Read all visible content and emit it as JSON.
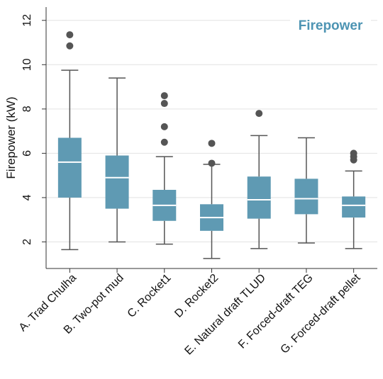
{
  "chart_data": {
    "type": "box",
    "title": "Firepower",
    "ylabel": "Firepower (kW)",
    "xlabel": "",
    "ylim": [
      0.8,
      12.6
    ],
    "yticks": [
      2,
      4,
      6,
      8,
      10,
      12
    ],
    "grid": true,
    "colors": {
      "box": "#5f9ab3",
      "median": "#ffffff",
      "whisker": "#555555",
      "outlier": "#555555",
      "title": "#4d94b3",
      "grid": "#e2e2e2"
    },
    "categories": [
      "A. Trad Chulha",
      "B. Two-pot mud",
      "C. Rocket1",
      "D. Rocket2",
      "E. Natural draft TLUD",
      "F. Forced-draft TEG",
      "G. Forced-draft pellet"
    ],
    "boxes": [
      {
        "category": "A. Trad Chulha",
        "min": 1.65,
        "q1": 4.0,
        "median": 5.6,
        "q3": 6.7,
        "max": 9.75,
        "outliers": [
          10.85,
          11.35
        ]
      },
      {
        "category": "B. Two-pot mud",
        "min": 2.0,
        "q1": 3.5,
        "median": 4.9,
        "q3": 5.9,
        "max": 9.4,
        "outliers": []
      },
      {
        "category": "C. Rocket1",
        "min": 1.9,
        "q1": 2.95,
        "median": 3.65,
        "q3": 4.35,
        "max": 5.85,
        "outliers": [
          6.5,
          7.2,
          8.25,
          8.6
        ]
      },
      {
        "category": "D. Rocket2",
        "min": 1.25,
        "q1": 2.5,
        "median": 3.1,
        "q3": 3.7,
        "max": 5.5,
        "outliers": [
          5.55,
          6.45
        ]
      },
      {
        "category": "E. Natural draft TLUD",
        "min": 1.7,
        "q1": 3.05,
        "median": 3.9,
        "q3": 4.95,
        "max": 6.8,
        "outliers": [
          7.8
        ]
      },
      {
        "category": "F. Forced-draft TEG",
        "min": 1.95,
        "q1": 3.25,
        "median": 3.95,
        "q3": 4.85,
        "max": 6.7,
        "outliers": []
      },
      {
        "category": "G. Forced-draft pellet",
        "min": 1.7,
        "q1": 3.1,
        "median": 3.65,
        "q3": 4.05,
        "max": 5.2,
        "outliers": [
          5.7,
          5.85,
          6.0
        ]
      }
    ]
  }
}
